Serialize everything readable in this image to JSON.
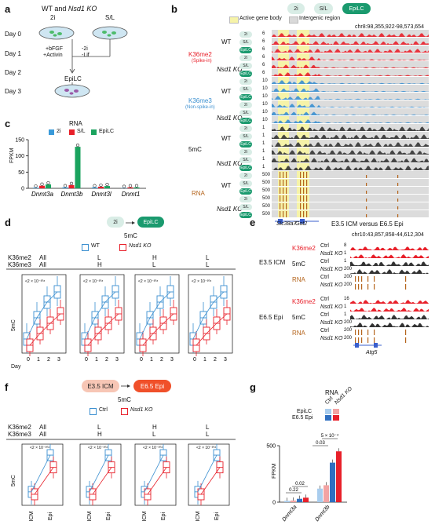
{
  "panels": {
    "a": {
      "label": "a",
      "title_wt": "WT and",
      "title_ko": "Nsd1 KO",
      "cond_2i": "2i",
      "cond_sl": "S/L",
      "days": [
        "Day 0",
        "Day 1",
        "Day 2",
        "Day 3"
      ],
      "treat_left": [
        "+bFGF",
        "+Activin"
      ],
      "treat_right": [
        "-2i",
        "-Lif"
      ],
      "epilc": "EpiLC"
    },
    "b": {
      "label": "b",
      "pills": [
        "2i",
        "S/L",
        "EpiLC"
      ],
      "legend_active": "Active gene body",
      "legend_intergenic": "Intergenic region",
      "coords": "chr8:98,355,922-98,573,654",
      "groups": [
        {
          "name": "K36me2",
          "sub": "(Spike-in)",
          "color": "#e8202a"
        },
        {
          "name": "K36me3",
          "sub": "(Non-spike-in)",
          "color": "#3a8fd0"
        },
        {
          "name": "5mC",
          "sub": "",
          "color": "#222222"
        },
        {
          "name": "RNA",
          "sub": "",
          "color": "#b5651d"
        }
      ],
      "genotypes": [
        "WT",
        "Nsd1 KO"
      ],
      "row_conds": [
        "2i",
        "S/L",
        "EpiLC"
      ],
      "scales": {
        "K36me2": "6",
        "K36me3": "10",
        "5mC": "1",
        "RNA": "500"
      },
      "genes": [
        "Slc38a7",
        "Got2"
      ]
    },
    "c": {
      "label": "c",
      "title": "RNA",
      "ylabel": "FPKM",
      "legend": [
        "2i",
        "S/L",
        "EpiLC"
      ]
    },
    "d": {
      "label": "d",
      "flow_from": "2i",
      "flow_to": "EpiLC",
      "title": "5mC",
      "legend": [
        "WT",
        "Nsd1 KO"
      ],
      "row1_label": "K36me2",
      "row2_label": "K36me3",
      "columns": [
        {
          "me2": "All",
          "me3": "All"
        },
        {
          "me2": "L",
          "me3": "H"
        },
        {
          "me2": "H",
          "me3": "L"
        },
        {
          "me2": "L",
          "me3": "L"
        }
      ],
      "ylabel": "5mC",
      "xlabel": "Day",
      "days": [
        "0",
        "1",
        "2",
        "3"
      ],
      "pvals": [
        "<2 × 10⁻³⁰⁸",
        "<2 × 10⁻³⁰⁸",
        "<2 × 10⁻³⁰⁸",
        "<2 × 10⁻³⁰⁸"
      ]
    },
    "e": {
      "label": "e",
      "title": "E3.5 ICM versus E6.5 Epi",
      "coords": "chr10:43,857,858-44,612,304",
      "blocks": [
        {
          "stage": "E3.5 ICM"
        },
        {
          "stage": "E6.5 Epi"
        }
      ],
      "marks": [
        "K36me2",
        "5mC",
        "RNA"
      ],
      "rows": [
        "Ctrl",
        "Nsd1 KO"
      ],
      "scales_icm": [
        "8",
        "1",
        "1",
        "200",
        "200"
      ],
      "scales_epi": [
        "16",
        "1",
        "1",
        "200",
        "200"
      ],
      "gene": "Atg5"
    },
    "f": {
      "label": "f",
      "flow_from": "E3.5 ICM",
      "flow_to": "E6.5 Epi",
      "title": "5mC",
      "legend": [
        "Ctrl",
        "Nsd1 KO"
      ],
      "row1_label": "K36me2",
      "row2_label": "K36me3",
      "columns": [
        {
          "me2": "All",
          "me3": "All"
        },
        {
          "me2": "L",
          "me3": "H"
        },
        {
          "me2": "H",
          "me3": "L"
        },
        {
          "me2": "L",
          "me3": "L"
        }
      ],
      "ylabel": "5mC",
      "xticks": [
        "ICM",
        "Epi"
      ],
      "pval": "<2 × 10⁻³⁰⁸"
    },
    "g": {
      "label": "g",
      "title": "RNA",
      "legend_rows": [
        "EpiLC",
        "E6.5 Epi"
      ],
      "legend_cols": [
        "Ctrl",
        "Nsd1 KO"
      ],
      "ylabel": "FPKM",
      "pvals": [
        "0.22",
        "0.02",
        "0.03",
        "5 × 10⁻⁴"
      ]
    }
  },
  "chart_data": [
    {
      "type": "bar",
      "panel": "c",
      "title": "RNA",
      "ylabel": "FPKM",
      "categories": [
        "Dnmt3a",
        "Dnmt3b",
        "Dnmt3l",
        "Dnmt1"
      ],
      "ylim": [
        0,
        150
      ],
      "yticks": [
        0,
        50,
        100,
        150
      ],
      "series": [
        {
          "name": "2i",
          "color": "#3a9ad9",
          "values": [
            2,
            3,
            3,
            1
          ]
        },
        {
          "name": "S/L",
          "color": "#e8202a",
          "values": [
            8,
            10,
            5,
            3
          ]
        },
        {
          "name": "EpiLC",
          "color": "#1aa35e",
          "values": [
            12,
            128,
            7,
            3
          ]
        }
      ]
    },
    {
      "type": "bar",
      "panel": "g",
      "title": "RNA",
      "ylabel": "FPKM",
      "categories": [
        "Dnmt3a",
        "Dnmt3b"
      ],
      "ylim": [
        0,
        500
      ],
      "yticks": [
        0,
        500
      ],
      "series": [
        {
          "name": "EpiLC Ctrl",
          "color": "#a9cdee",
          "values": [
            12,
            120
          ]
        },
        {
          "name": "EpiLC Nsd1 KO",
          "color": "#f3a3a3",
          "values": [
            15,
            150
          ]
        },
        {
          "name": "E6.5 Epi Ctrl",
          "color": "#2f6fc0",
          "values": [
            30,
            350
          ]
        },
        {
          "name": "E6.5 Epi Nsd1 KO",
          "color": "#e8202a",
          "values": [
            40,
            450
          ]
        }
      ]
    }
  ]
}
